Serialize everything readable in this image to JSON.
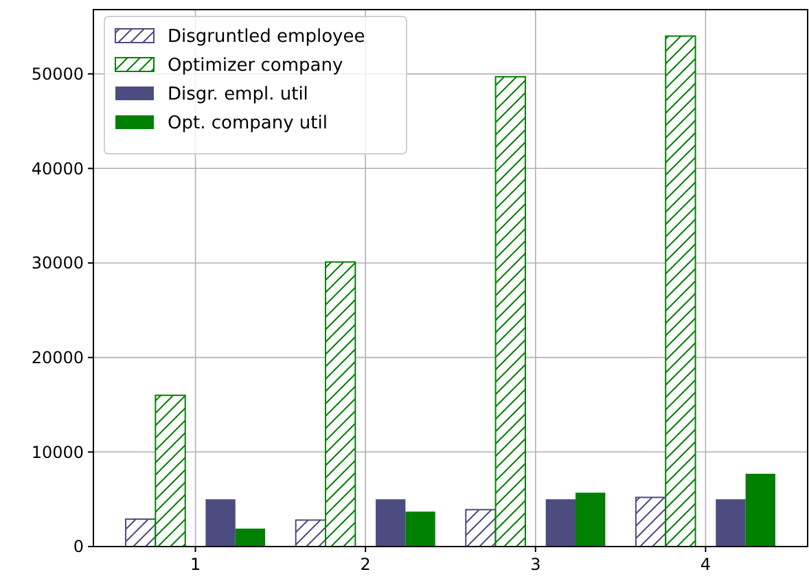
{
  "chart_data": {
    "type": "bar",
    "categories": [
      "1",
      "2",
      "3",
      "4"
    ],
    "series": [
      {
        "name": "Disgruntled employee",
        "color": "#4c4c80",
        "values": [
          2900,
          2800,
          3900,
          5200
        ]
      },
      {
        "name": "Optimizer company",
        "color": "#008000",
        "values": [
          16000,
          30100,
          49700,
          54000
        ]
      },
      {
        "name": "Disgr. empl. util",
        "color": "#4c4c80",
        "values": [
          5000,
          5000,
          5000,
          5000
        ]
      },
      {
        "name": "Opt. company util",
        "color": "#008000",
        "values": [
          1900,
          3700,
          5700,
          7700
        ]
      }
    ],
    "ylim": [
      0,
      56800
    ],
    "yticks": [
      0,
      10000,
      20000,
      30000,
      40000,
      50000
    ],
    "grid": true,
    "legend": "top left"
  }
}
